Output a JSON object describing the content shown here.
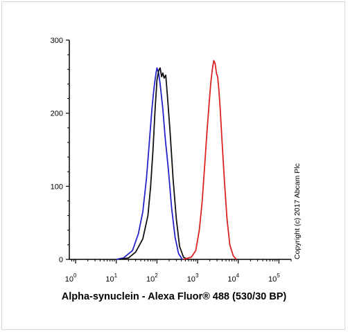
{
  "chart_data": {
    "type": "line",
    "title": "",
    "xlabel": "Alpha-synuclein - Alexa Fluor® 488 (530/30 BP)",
    "ylabel": "",
    "x_scale": "log",
    "xlim": [
      0.7,
      200000
    ],
    "ylim": [
      0,
      300
    ],
    "x_ticks": [
      {
        "base": "10",
        "exp": "0",
        "value": 1
      },
      {
        "base": "10",
        "exp": "1",
        "value": 10
      },
      {
        "base": "10",
        "exp": "2",
        "value": 100
      },
      {
        "base": "10",
        "exp": "3",
        "value": 1000
      },
      {
        "base": "10",
        "exp": "4",
        "value": 10000
      },
      {
        "base": "10",
        "exp": "5",
        "value": 100000
      }
    ],
    "y_ticks": [
      "0",
      "100",
      "200",
      "300"
    ],
    "grid": false,
    "annotation": "Copyright (c) 2017 Abcam Plc",
    "series": [
      {
        "color": "#2222cc",
        "points": [
          [
            10,
            0
          ],
          [
            15,
            2
          ],
          [
            25,
            12
          ],
          [
            35,
            35
          ],
          [
            45,
            65
          ],
          [
            55,
            110
          ],
          [
            65,
            160
          ],
          [
            75,
            205
          ],
          [
            85,
            235
          ],
          [
            95,
            255
          ],
          [
            100,
            262
          ],
          [
            110,
            255
          ],
          [
            120,
            240
          ],
          [
            140,
            205
          ],
          [
            160,
            165
          ],
          [
            190,
            125
          ],
          [
            230,
            70
          ],
          [
            280,
            30
          ],
          [
            340,
            8
          ],
          [
            420,
            0
          ]
        ]
      },
      {
        "color": "#111111",
        "points": [
          [
            12,
            0
          ],
          [
            20,
            2
          ],
          [
            30,
            10
          ],
          [
            45,
            28
          ],
          [
            60,
            60
          ],
          [
            70,
            100
          ],
          [
            80,
            150
          ],
          [
            90,
            205
          ],
          [
            100,
            245
          ],
          [
            110,
            258
          ],
          [
            120,
            262
          ],
          [
            130,
            250
          ],
          [
            140,
            255
          ],
          [
            150,
            248
          ],
          [
            165,
            252
          ],
          [
            180,
            225
          ],
          [
            210,
            175
          ],
          [
            250,
            110
          ],
          [
            300,
            55
          ],
          [
            360,
            18
          ],
          [
            450,
            3
          ],
          [
            560,
            0
          ]
        ]
      },
      {
        "color": "#dd2222",
        "points": [
          [
            450,
            0
          ],
          [
            700,
            3
          ],
          [
            900,
            12
          ],
          [
            1100,
            40
          ],
          [
            1300,
            80
          ],
          [
            1500,
            130
          ],
          [
            1700,
            175
          ],
          [
            1900,
            210
          ],
          [
            2100,
            240
          ],
          [
            2300,
            260
          ],
          [
            2500,
            272
          ],
          [
            2700,
            268
          ],
          [
            2900,
            255
          ],
          [
            3100,
            250
          ],
          [
            3300,
            235
          ],
          [
            3600,
            205
          ],
          [
            4000,
            160
          ],
          [
            4600,
            105
          ],
          [
            5300,
            55
          ],
          [
            6200,
            20
          ],
          [
            7500,
            5
          ],
          [
            9000,
            0
          ]
        ]
      }
    ]
  }
}
